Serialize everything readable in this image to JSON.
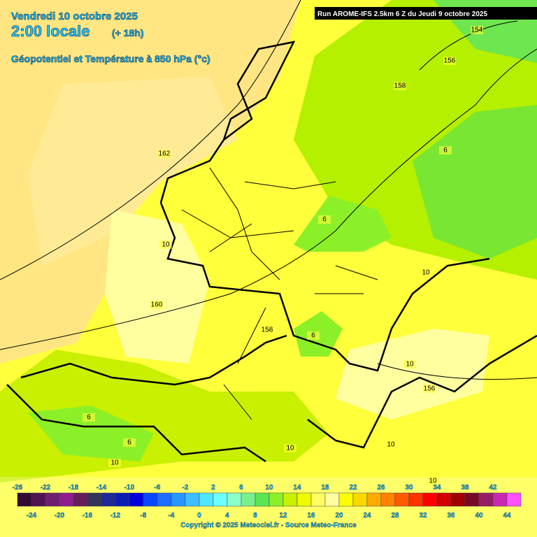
{
  "header": {
    "date": "Vendredi 10 octobre 2025",
    "time": "2:00 locale",
    "lead": "(+ 18h)",
    "field": "Géopotentiel et Température à 850 hPa (°c)",
    "run": "Run AROME-IFS 2.5km 6 Z du Jeudi 9 octobre 2025"
  },
  "contour_labels": [
    "154",
    "156",
    "158",
    "162",
    "6",
    "6",
    "10",
    "10",
    "160",
    "158",
    "6",
    "10",
    "156",
    "6",
    "6",
    "10",
    "10",
    "10",
    "10"
  ],
  "scale": {
    "labels_top": [
      "-26",
      "-22",
      "-18",
      "-14",
      "-10",
      "-6",
      "-2",
      "2",
      "6",
      "10",
      "14",
      "18",
      "22",
      "26",
      "30",
      "34",
      "38",
      "42"
    ],
    "labels_bottom": [
      "-24",
      "-20",
      "-16",
      "-12",
      "-8",
      "-4",
      "0",
      "4",
      "8",
      "12",
      "16",
      "20",
      "24",
      "28",
      "32",
      "36",
      "40",
      "44"
    ],
    "colors": [
      "#320a32",
      "#501450",
      "#6e1e6e",
      "#8c1e8c",
      "#641e5a",
      "#32325a",
      "#1e2896",
      "#0a1eb4",
      "#0000dc",
      "#0a46ff",
      "#1e6eff",
      "#2896ff",
      "#3cbeff",
      "#50e6ff",
      "#6effff",
      "#8cffc8",
      "#78f08c",
      "#5ae650",
      "#8cf028",
      "#c8f000",
      "#f0fa00",
      "#ffff64",
      "#ffffa0",
      "#ffff00",
      "#ffd700",
      "#ffaa00",
      "#ff8200",
      "#ff5a00",
      "#ff3200",
      "#ff0000",
      "#d20000",
      "#a00000",
      "#780a28",
      "#961e64",
      "#c828b4",
      "#ff50ff"
    ]
  },
  "footer": {
    "copyright": "Copyright © 2025 Meteociel.fr - Source Meteo-France"
  }
}
